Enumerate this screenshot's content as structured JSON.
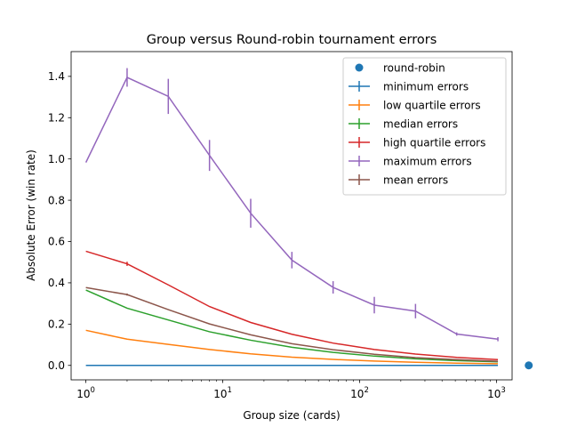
{
  "chart_data": {
    "type": "line",
    "title": "Group versus Round-robin tournament errors",
    "xlabel": "Group size (cards)",
    "ylabel": "Absolute Error (win rate)",
    "xscale": "log",
    "xlim": [
      0.78,
      1300
    ],
    "ylim": [
      -0.07,
      1.52
    ],
    "x_ticks": [
      {
        "value": 1,
        "base": "10",
        "exp": "0"
      },
      {
        "value": 10,
        "base": "10",
        "exp": "1"
      },
      {
        "value": 100,
        "base": "10",
        "exp": "2"
      },
      {
        "value": 1000,
        "base": "10",
        "exp": "3"
      }
    ],
    "y_ticks": [
      {
        "value": 0.0,
        "label": "0.0"
      },
      {
        "value": 0.2,
        "label": "0.2"
      },
      {
        "value": 0.4,
        "label": "0.4"
      },
      {
        "value": 0.6,
        "label": "0.6"
      },
      {
        "value": 0.8,
        "label": "0.8"
      },
      {
        "value": 1.0,
        "label": "1.0"
      },
      {
        "value": 1.2,
        "label": "1.2"
      },
      {
        "value": 1.4,
        "label": "1.4"
      }
    ],
    "legend_position": "top-right",
    "grid": false,
    "x": [
      1,
      2,
      4,
      8,
      16,
      32,
      64,
      128,
      256,
      512,
      1024
    ],
    "scatter": {
      "name": "round-robin",
      "x": 1720,
      "y": 0.0,
      "color": "#1f77b4"
    },
    "series": [
      {
        "name": "minimum errors",
        "color": "#1f77b4",
        "values": [
          0.0,
          0.0,
          0.0,
          0.0,
          0.0,
          0.0,
          0.0,
          0.0,
          0.0,
          0.0,
          0.0
        ],
        "errors": [
          0,
          0,
          0,
          0,
          0,
          0,
          0,
          0,
          0,
          0,
          0
        ]
      },
      {
        "name": "low quartile errors",
        "color": "#ff7f0e",
        "values": [
          0.17,
          0.127,
          0.102,
          0.077,
          0.056,
          0.04,
          0.029,
          0.021,
          0.015,
          0.011,
          0.008
        ],
        "errors": [
          0,
          0,
          0,
          0,
          0,
          0,
          0,
          0,
          0,
          0,
          0
        ]
      },
      {
        "name": "median errors",
        "color": "#2ca02c",
        "values": [
          0.365,
          0.277,
          0.22,
          0.163,
          0.122,
          0.088,
          0.063,
          0.045,
          0.032,
          0.023,
          0.017
        ],
        "errors": [
          0,
          0,
          0,
          0,
          0,
          0,
          0,
          0,
          0,
          0,
          0
        ]
      },
      {
        "name": "high quartile errors",
        "color": "#d62728",
        "values": [
          0.553,
          0.492,
          0.39,
          0.285,
          0.208,
          0.151,
          0.108,
          0.077,
          0.055,
          0.039,
          0.028
        ],
        "errors": [
          0,
          0.01,
          0,
          0,
          0,
          0,
          0,
          0,
          0,
          0,
          0
        ]
      },
      {
        "name": "maximum errors",
        "color": "#9467bd",
        "values": [
          0.983,
          1.395,
          1.303,
          1.017,
          0.737,
          0.51,
          0.378,
          0.292,
          0.263,
          0.152,
          0.127
        ],
        "errors": [
          0,
          0.045,
          0.085,
          0.075,
          0.07,
          0.04,
          0.03,
          0.04,
          0.035,
          0.008,
          0.01
        ]
      },
      {
        "name": "mean errors",
        "color": "#8c564b",
        "values": [
          0.377,
          0.343,
          0.27,
          0.201,
          0.148,
          0.105,
          0.076,
          0.054,
          0.038,
          0.028,
          0.02
        ],
        "errors": [
          0,
          0.005,
          0,
          0,
          0,
          0,
          0,
          0,
          0,
          0,
          0
        ]
      }
    ]
  }
}
